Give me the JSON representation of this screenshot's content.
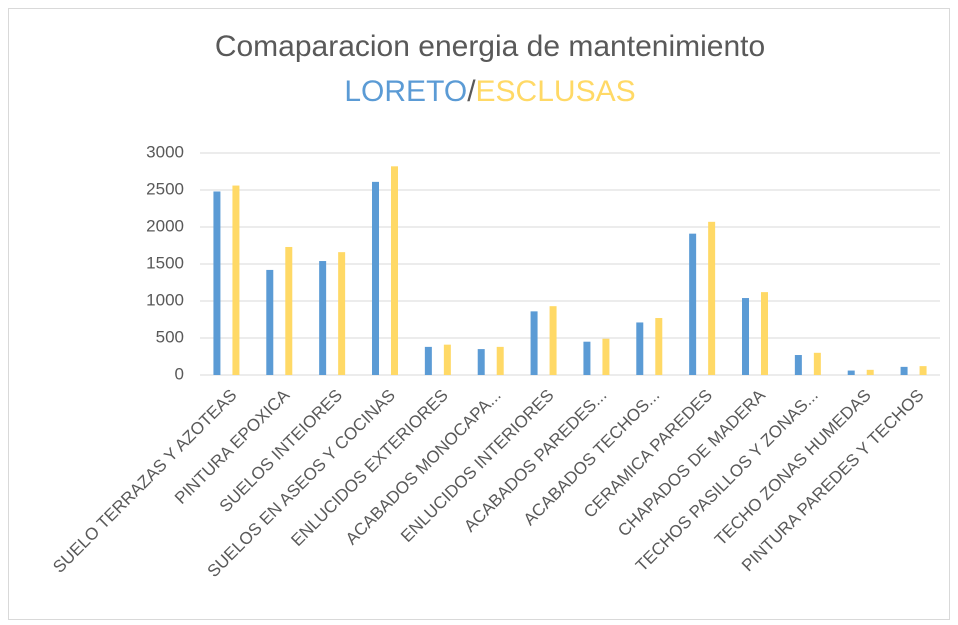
{
  "chart_data": {
    "type": "bar",
    "title": "Comaparacion energia de mantenimiento",
    "title_separator": "/",
    "categories": [
      "SUELO TERRAZAS Y AZOTEAS",
      "PINTURA EPOXICA",
      "SUELOS INTEIORES",
      "SUELOS EN ASEOS Y COCINAS",
      "ENLUCIDOS EXTERIORES",
      "ACABADOS MONOCAPA...",
      "ENLUCIDOS INTERIORES",
      "ACABADOS PAREDES...",
      "ACABADOS TECHOS...",
      "CERAMICA PAREDES",
      "CHAPADOS DE MADERA",
      "TECHOS PASILLOS Y ZONAS...",
      "TECHO ZONAS HUMEDAS",
      "PINTURA PAREDES Y TECHOS"
    ],
    "series": [
      {
        "name": "LORETO",
        "color": "#5b9bd5",
        "values": [
          2480,
          1420,
          1540,
          2610,
          380,
          350,
          860,
          450,
          710,
          1910,
          1040,
          270,
          60,
          110
        ]
      },
      {
        "name": "ESCLUSAS",
        "color": "#ffd966",
        "values": [
          2560,
          1730,
          1660,
          2820,
          410,
          380,
          930,
          490,
          770,
          2070,
          1120,
          300,
          70,
          120
        ]
      }
    ],
    "ylim": [
      0,
      3000
    ],
    "yticks": [
      0,
      500,
      1000,
      1500,
      2000,
      2500,
      3000
    ],
    "grid": true
  }
}
